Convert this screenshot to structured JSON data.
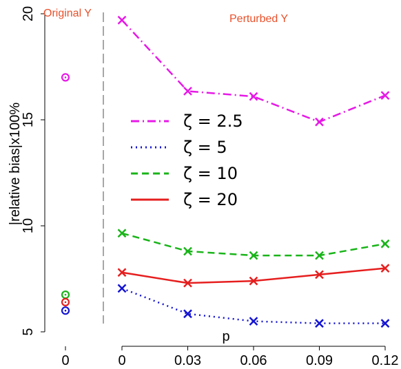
{
  "chart_data": {
    "type": "line",
    "title": "",
    "ylabel": "|relative bias|x100%",
    "xlabel": "p",
    "ylim": [
      5,
      20
    ],
    "y_ticks": [
      "5",
      "10",
      "15",
      "20"
    ],
    "x_ticks_original": [
      "0"
    ],
    "x_ticks_perturbed": [
      "0",
      "0.03",
      "0.06",
      "0.09",
      "0.12"
    ],
    "x": [
      0,
      0.03,
      0.06,
      0.09,
      0.12
    ],
    "panel_labels": {
      "original": "Original Y",
      "perturbed": "Perturbed Y"
    },
    "legend_position": "middle-left",
    "grid": false,
    "series": [
      {
        "name": "ζ = 2.5",
        "color": "#e619e6",
        "dash": "dotdash",
        "original": 17.0,
        "values": [
          19.7,
          16.35,
          16.1,
          14.9,
          16.15
        ]
      },
      {
        "name": "ζ = 5",
        "color": "#1414d2",
        "dash": "dotted",
        "original": 6.0,
        "values": [
          7.05,
          5.85,
          5.5,
          5.4,
          5.4
        ]
      },
      {
        "name": "ζ = 10",
        "color": "#19b419",
        "dash": "dashed",
        "original": 6.75,
        "values": [
          9.65,
          8.8,
          8.6,
          8.6,
          9.15
        ]
      },
      {
        "name": "ζ = 20",
        "color": "#e61e1e",
        "dash": "solid",
        "original": 6.4,
        "values": [
          7.8,
          7.3,
          7.4,
          7.7,
          8.0
        ]
      }
    ]
  }
}
